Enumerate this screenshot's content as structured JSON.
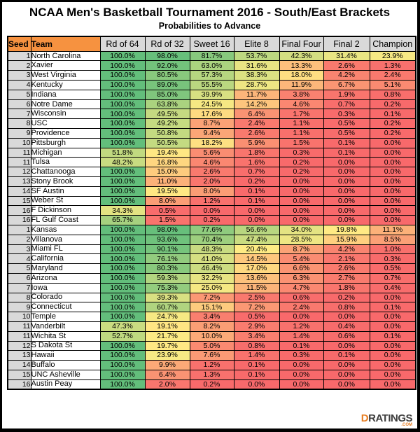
{
  "chart_data": {
    "type": "table",
    "title": "NCAA Men's Basketball Tournament 2016 - South/East Brackets",
    "subtitle": "Probabilities to Advance",
    "columns": [
      "Seed",
      "Team",
      "Rd of 64",
      "Rd of 32",
      "Sweet 16",
      "Elite 8",
      "Final Four",
      "Final 2",
      "Champion"
    ],
    "value_format": "percent_one_decimal",
    "rows": [
      {
        "seed": 1,
        "team": "North Carolina",
        "probs": [
          100.0,
          98.0,
          81.7,
          53.7,
          42.3,
          31.4,
          23.9
        ]
      },
      {
        "seed": 2,
        "team": "Xavier",
        "probs": [
          100.0,
          92.0,
          63.0,
          31.6,
          13.3,
          2.6,
          1.3
        ]
      },
      {
        "seed": 3,
        "team": "West Virginia",
        "probs": [
          100.0,
          80.5,
          57.3,
          38.3,
          18.0,
          4.2,
          2.4
        ]
      },
      {
        "seed": 4,
        "team": "Kentucky",
        "probs": [
          100.0,
          89.0,
          55.5,
          28.7,
          11.9,
          6.7,
          5.1
        ]
      },
      {
        "seed": 5,
        "team": "Indiana",
        "probs": [
          100.0,
          85.0,
          39.9,
          11.7,
          3.8,
          1.9,
          0.8
        ]
      },
      {
        "seed": 6,
        "team": "Notre Dame",
        "probs": [
          100.0,
          63.8,
          24.5,
          14.2,
          4.6,
          0.7,
          0.2
        ]
      },
      {
        "seed": 7,
        "team": "Wisconsin",
        "probs": [
          100.0,
          49.5,
          17.6,
          6.4,
          1.7,
          0.3,
          0.1
        ]
      },
      {
        "seed": 8,
        "team": "USC",
        "probs": [
          100.0,
          49.2,
          8.7,
          2.4,
          1.1,
          0.5,
          0.2
        ]
      },
      {
        "seed": 9,
        "team": "Providence",
        "probs": [
          100.0,
          50.8,
          9.4,
          2.6,
          1.1,
          0.5,
          0.2
        ]
      },
      {
        "seed": 10,
        "team": "Pittsburgh",
        "probs": [
          100.0,
          50.5,
          18.2,
          5.9,
          1.5,
          0.1,
          0.0
        ]
      },
      {
        "seed": 11,
        "team": "Michigan",
        "probs": [
          51.8,
          19.4,
          5.6,
          1.8,
          0.3,
          0.1,
          0.0
        ]
      },
      {
        "seed": 11,
        "team": "Tulsa",
        "probs": [
          48.2,
          16.8,
          4.6,
          1.6,
          0.2,
          0.0,
          0.0
        ]
      },
      {
        "seed": 12,
        "team": "Chattanooga",
        "probs": [
          100.0,
          15.0,
          2.6,
          0.7,
          0.2,
          0.0,
          0.0
        ]
      },
      {
        "seed": 13,
        "team": "Stony Brook",
        "probs": [
          100.0,
          11.0,
          2.0,
          0.2,
          0.0,
          0.0,
          0.0
        ]
      },
      {
        "seed": 14,
        "team": "SF Austin",
        "probs": [
          100.0,
          19.5,
          8.0,
          0.1,
          0.0,
          0.0,
          0.0
        ]
      },
      {
        "seed": 15,
        "team": "Weber St",
        "probs": [
          100.0,
          8.0,
          1.2,
          0.1,
          0.0,
          0.0,
          0.0
        ]
      },
      {
        "seed": 16,
        "team": "F Dickinson",
        "probs": [
          34.3,
          0.5,
          0.0,
          0.0,
          0.0,
          0.0,
          0.0
        ]
      },
      {
        "seed": 16,
        "team": "FL Gulf Coast",
        "probs": [
          65.7,
          1.5,
          0.2,
          0.0,
          0.0,
          0.0,
          0.0
        ]
      },
      {
        "seed": 1,
        "team": "Kansas",
        "probs": [
          100.0,
          98.0,
          77.6,
          56.6,
          34.0,
          19.8,
          11.1
        ]
      },
      {
        "seed": 2,
        "team": "Villanova",
        "probs": [
          100.0,
          93.6,
          70.4,
          47.4,
          28.5,
          15.9,
          8.5
        ]
      },
      {
        "seed": 3,
        "team": "Miami FL",
        "probs": [
          100.0,
          90.1,
          48.3,
          20.4,
          8.7,
          4.2,
          1.0
        ]
      },
      {
        "seed": 4,
        "team": "California",
        "probs": [
          100.0,
          76.1,
          41.0,
          14.5,
          5.4,
          2.1,
          0.3
        ]
      },
      {
        "seed": 5,
        "team": "Maryland",
        "probs": [
          100.0,
          80.3,
          46.4,
          17.0,
          6.6,
          2.6,
          0.5
        ]
      },
      {
        "seed": 6,
        "team": "Arizona",
        "probs": [
          100.0,
          59.3,
          32.2,
          13.6,
          6.3,
          2.7,
          0.7
        ]
      },
      {
        "seed": 7,
        "team": "Iowa",
        "probs": [
          100.0,
          75.3,
          25.0,
          11.5,
          4.7,
          1.8,
          0.4
        ]
      },
      {
        "seed": 8,
        "team": "Colorado",
        "probs": [
          100.0,
          39.3,
          7.2,
          2.5,
          0.6,
          0.2,
          0.0
        ]
      },
      {
        "seed": 9,
        "team": "Connecticut",
        "probs": [
          100.0,
          60.7,
          15.1,
          7.2,
          2.4,
          0.8,
          0.1
        ]
      },
      {
        "seed": 10,
        "team": "Temple",
        "probs": [
          100.0,
          24.7,
          3.4,
          0.5,
          0.0,
          0.0,
          0.0
        ]
      },
      {
        "seed": 11,
        "team": "Vanderbilt",
        "probs": [
          47.3,
          19.1,
          8.2,
          2.9,
          1.2,
          0.4,
          0.0
        ]
      },
      {
        "seed": 11,
        "team": "Wichita St",
        "probs": [
          52.7,
          21.7,
          10.0,
          3.4,
          1.4,
          0.6,
          0.1
        ]
      },
      {
        "seed": 12,
        "team": "S Dakota St",
        "probs": [
          100.0,
          19.7,
          5.0,
          0.8,
          0.1,
          0.0,
          0.0
        ]
      },
      {
        "seed": 13,
        "team": "Hawaii",
        "probs": [
          100.0,
          23.9,
          7.6,
          1.4,
          0.3,
          0.1,
          0.0
        ]
      },
      {
        "seed": 14,
        "team": "Buffalo",
        "probs": [
          100.0,
          9.9,
          1.2,
          0.1,
          0.0,
          0.0,
          0.0
        ]
      },
      {
        "seed": 15,
        "team": "UNC Asheville",
        "probs": [
          100.0,
          6.4,
          1.3,
          0.1,
          0.0,
          0.0,
          0.0
        ]
      },
      {
        "seed": 16,
        "team": "Austin Peay",
        "probs": [
          100.0,
          2.0,
          0.2,
          0.0,
          0.0,
          0.0,
          0.0
        ]
      }
    ],
    "color_scale": {
      "min_value": 0,
      "mid_value": 20,
      "max_value": 100,
      "min_color": "#F8696B",
      "mid_color": "#FFEB84",
      "max_color": "#63BE7B"
    },
    "layout": {
      "grid": true,
      "legend": "none"
    }
  },
  "colors": {
    "header_orange": "#F69240",
    "header_gray": "#D9D9D9",
    "border": "#000000",
    "logo_orange": "#E87E23",
    "logo_dark": "#3E3E3E"
  },
  "logo": {
    "d": "D",
    "ratings": "RATINGS",
    "com": ".COM"
  }
}
